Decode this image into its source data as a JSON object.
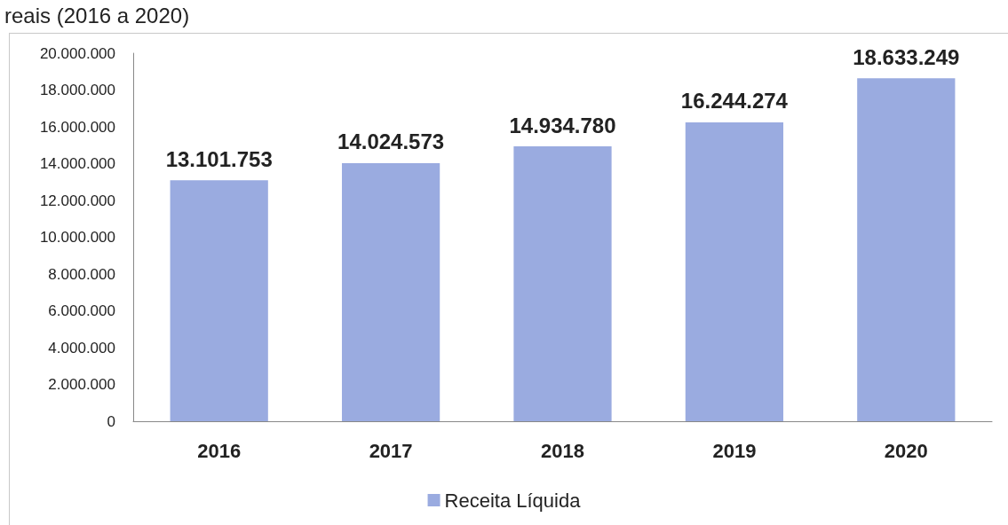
{
  "chart_data": {
    "type": "bar",
    "title": "reais (2016 a 2020)",
    "categories": [
      "2016",
      "2017",
      "2018",
      "2019",
      "2020"
    ],
    "series": [
      {
        "name": "Receita Líquida",
        "color": "#9aabe0",
        "values": [
          13101753,
          14024573,
          14934780,
          16244274,
          18633249
        ],
        "value_labels": [
          "13.101.753",
          "14.024.573",
          "14.934.780",
          "16.244.274",
          "18.633.249"
        ]
      }
    ],
    "ylim": [
      0,
      20000000
    ],
    "yticks": [
      {
        "value": 0,
        "label": "0"
      },
      {
        "value": 2000000,
        "label": "2.000.000"
      },
      {
        "value": 4000000,
        "label": "4.000.000"
      },
      {
        "value": 6000000,
        "label": "6.000.000"
      },
      {
        "value": 8000000,
        "label": "8.000.000"
      },
      {
        "value": 10000000,
        "label": "10.000.000"
      },
      {
        "value": 12000000,
        "label": "12.000.000"
      },
      {
        "value": 14000000,
        "label": "14.000.000"
      },
      {
        "value": 16000000,
        "label": "16.000.000"
      },
      {
        "value": 18000000,
        "label": "18.000.000"
      },
      {
        "value": 20000000,
        "label": "20.000.000"
      }
    ],
    "grid": false,
    "legend": "bottom"
  }
}
